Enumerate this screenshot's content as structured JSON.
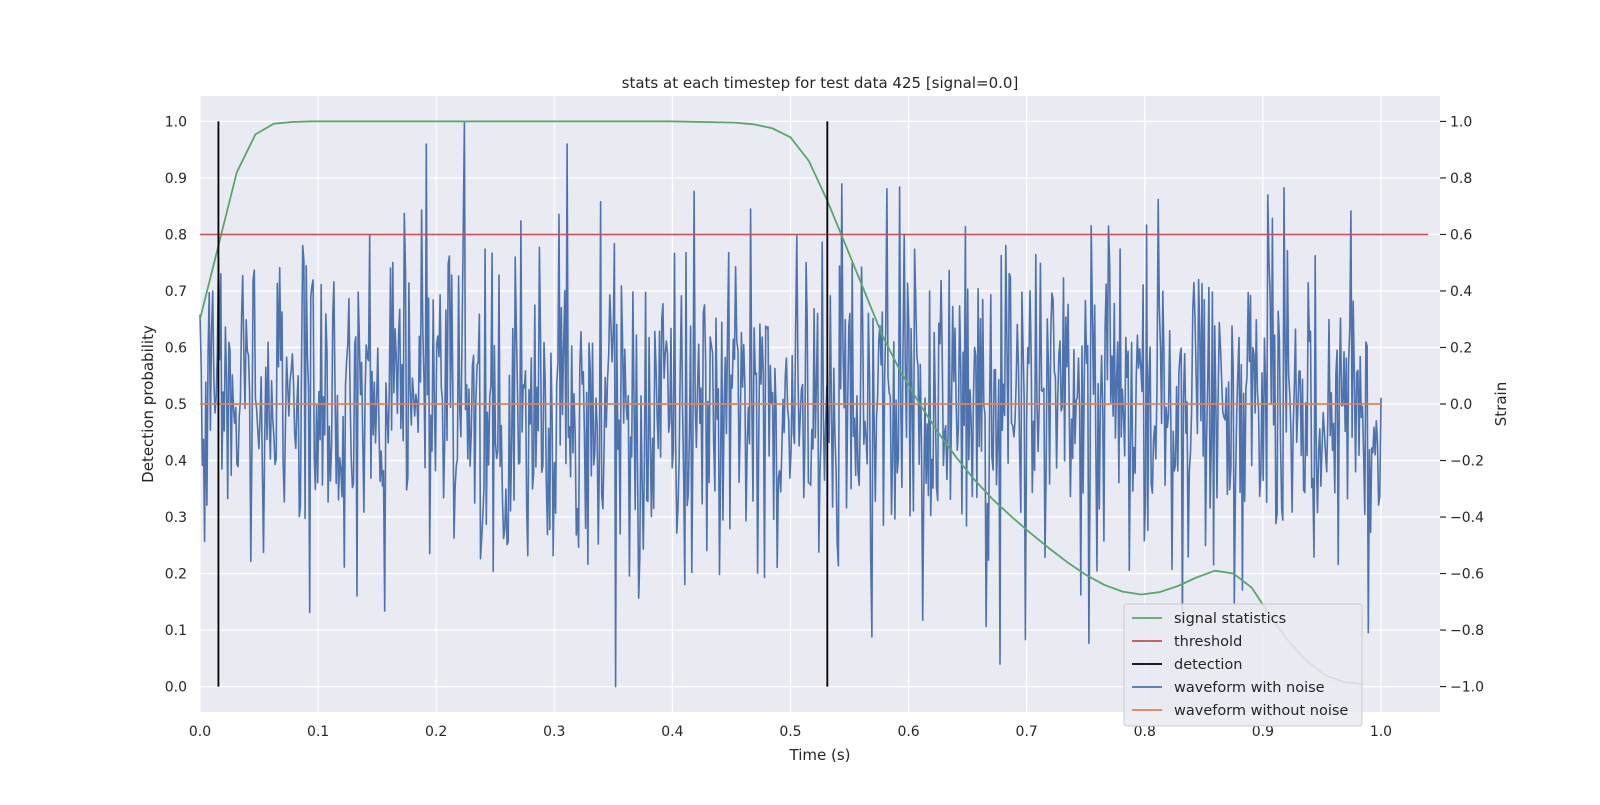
{
  "chart_data": {
    "type": "line",
    "title": "stats at each timestep for test data 425 [signal=0.0]",
    "xlabel": "Time (s)",
    "ylabel_left": "Detection probability",
    "ylabel_right": "Strain",
    "xlim": [
      0.0,
      1.05
    ],
    "ylim_left": [
      -0.045,
      1.045
    ],
    "ylim_right": [
      -1.09,
      1.09
    ],
    "x_ticks": [
      "0.0",
      "0.1",
      "0.2",
      "0.3",
      "0.4",
      "0.5",
      "0.6",
      "0.7",
      "0.8",
      "0.9",
      "1.0"
    ],
    "y_ticks_left": [
      "0.0",
      "0.1",
      "0.2",
      "0.3",
      "0.4",
      "0.5",
      "0.6",
      "0.7",
      "0.8",
      "0.9",
      "1.0"
    ],
    "y_ticks_right": [
      "−1.0",
      "−0.8",
      "−0.6",
      "−0.4",
      "−0.2",
      "0.0",
      "0.2",
      "0.4",
      "0.6",
      "0.8",
      "1.0"
    ],
    "grid": true,
    "legend_position": "lower-right",
    "series": [
      {
        "name": "signal statistics",
        "axis": "left",
        "color": "#55a868",
        "x": [
          0.0,
          0.0156,
          0.0312,
          0.0469,
          0.0625,
          0.0781,
          0.0938,
          0.25,
          0.4,
          0.4531,
          0.4688,
          0.4844,
          0.5,
          0.5156,
          0.5312,
          0.5469,
          0.5625,
          0.5781,
          0.5938,
          0.6094,
          0.625,
          0.6406,
          0.6562,
          0.6719,
          0.6875,
          0.7031,
          0.7188,
          0.7344,
          0.75,
          0.7656,
          0.7812,
          0.7969,
          0.8125,
          0.8281,
          0.8438,
          0.8594,
          0.875,
          0.8906,
          0.9062,
          0.9219,
          0.9375,
          0.9531,
          0.9688,
          0.9844
        ],
        "y": [
          0.65,
          0.78,
          0.91,
          0.977,
          0.996,
          0.999,
          1.0,
          1.0,
          1.0,
          0.998,
          0.995,
          0.988,
          0.972,
          0.93,
          0.86,
          0.78,
          0.7,
          0.62,
          0.555,
          0.5,
          0.45,
          0.405,
          0.365,
          0.33,
          0.3,
          0.272,
          0.245,
          0.22,
          0.198,
          0.18,
          0.168,
          0.163,
          0.167,
          0.178,
          0.193,
          0.205,
          0.2,
          0.175,
          0.125,
          0.08,
          0.045,
          0.02,
          0.008,
          0.004
        ]
      },
      {
        "name": "threshold",
        "axis": "left",
        "color": "#c44e52",
        "x": [
          0.0,
          1.04
        ],
        "y": [
          0.8,
          0.8
        ]
      },
      {
        "name": "detection",
        "axis": "left",
        "color": "#000000",
        "x": [
          0.0156,
          0.5312
        ],
        "y": [
          0.0,
          1.0
        ]
      },
      {
        "name": "waveform with noise",
        "axis": "right",
        "color": "#4c72b0",
        "x_range": [
          0.0,
          1.0
        ],
        "y_extremes": {
          "0.2236": 1.0,
          "0.3516": -1.0
        }
      },
      {
        "name": "waveform without noise",
        "axis": "right",
        "color": "#dd8452",
        "x": [
          0.0,
          1.0
        ],
        "y": [
          0.0,
          0.0
        ]
      }
    ]
  }
}
